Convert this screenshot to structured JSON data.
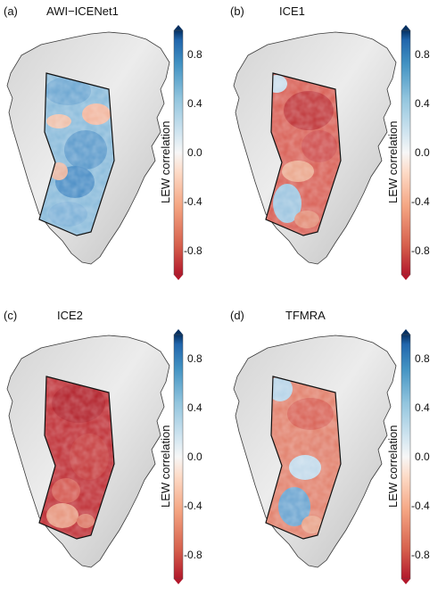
{
  "figure": {
    "colorbar": {
      "label": "LEW correlation",
      "ticks": [
        "0.8",
        "0.4",
        "0.0",
        "-0.4",
        "-0.8"
      ],
      "range": [
        -1.0,
        1.0
      ],
      "colors": [
        "#b2182b",
        "#d6604d",
        "#f4a582",
        "#fddbc7",
        "#f7f7f7",
        "#d1e5f0",
        "#92c5de",
        "#4393c3",
        "#2166ac",
        "#053061"
      ]
    },
    "panels": [
      {
        "letter": "(a)",
        "name": "AWI−ICENet1",
        "mean_correlation": 0.25,
        "dominant_color": "#86b8d9"
      },
      {
        "letter": "(b)",
        "name": "ICE1",
        "mean_correlation": -0.5,
        "dominant_color": "#d9645a"
      },
      {
        "letter": "(c)",
        "name": "ICE2",
        "mean_correlation": -0.75,
        "dominant_color": "#c0343a"
      },
      {
        "letter": "(d)",
        "name": "TFMRA",
        "mean_correlation": -0.3,
        "dominant_color": "#e28470"
      }
    ]
  }
}
